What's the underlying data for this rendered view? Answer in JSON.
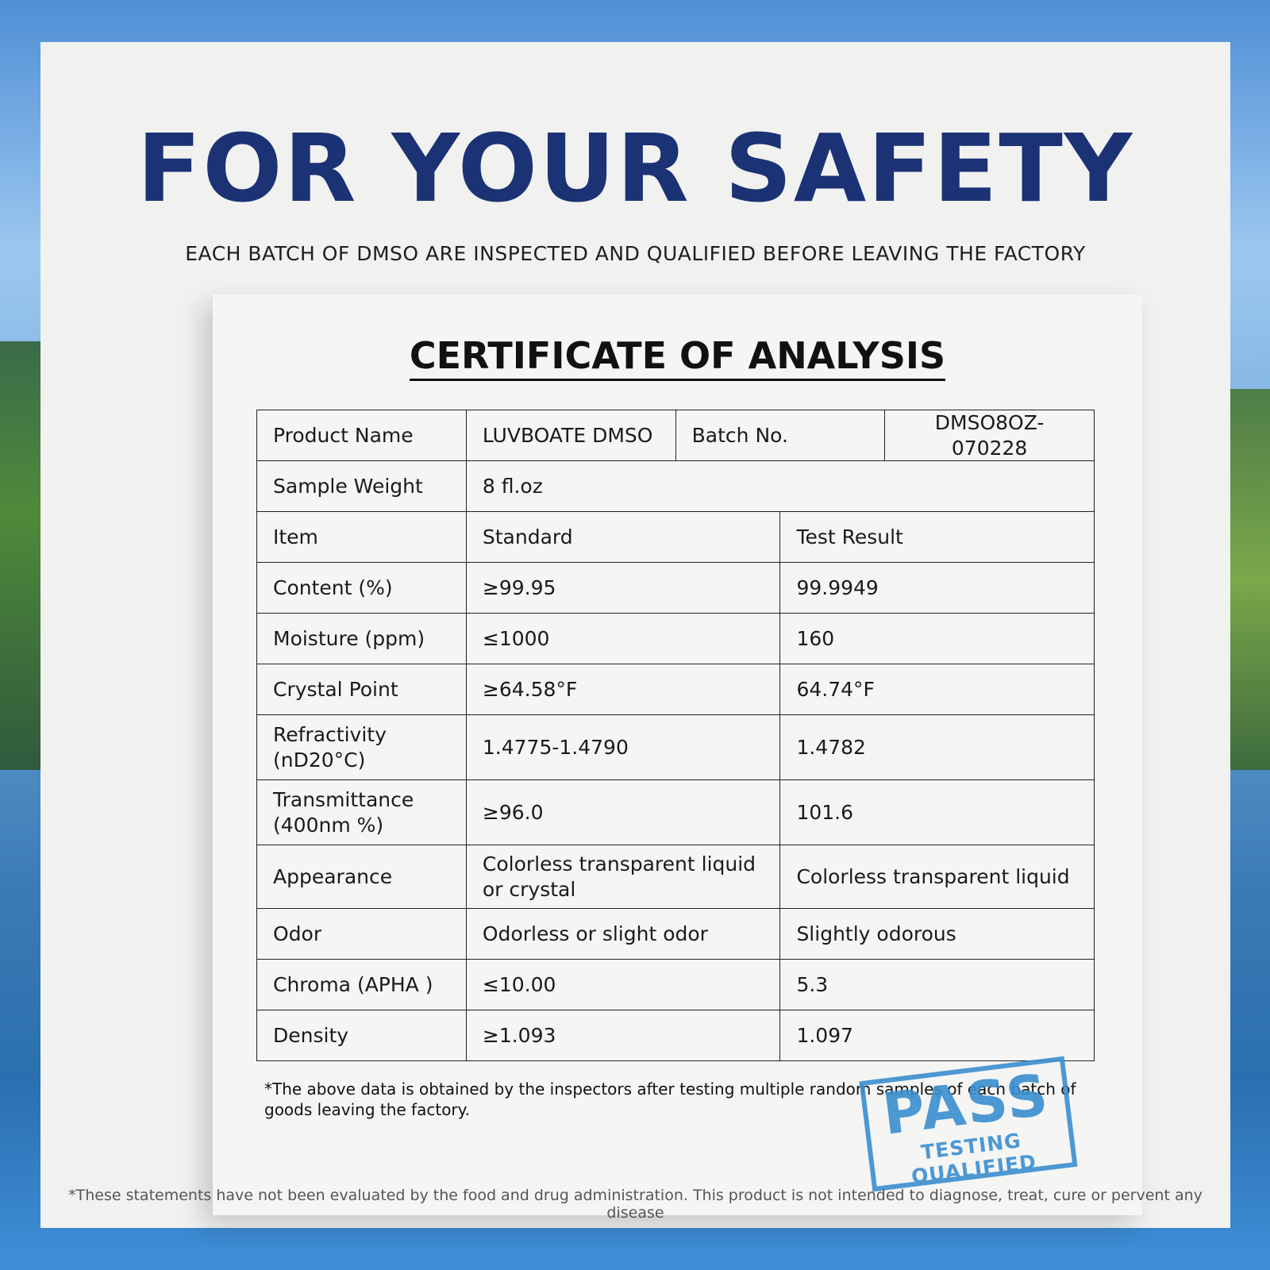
{
  "title": "FOR YOUR SAFETY",
  "subtitle": "EACH BATCH OF DMSO ARE INSPECTED AND QUALIFIED BEFORE LEAVING THE FACTORY",
  "certificate": {
    "heading": "CERTIFICATE OF ANALYSIS",
    "product_name_label": "Product Name",
    "product_name": "LUVBOATE DMSO",
    "batch_label": "Batch No.",
    "batch": "DMSO8OZ-070228",
    "sample_weight_label": "Sample Weight",
    "sample_weight": "8 fl.oz",
    "headers": [
      "Item",
      "Standard",
      "Test Result"
    ],
    "rows": [
      [
        "Content (%)",
        "≥99.95",
        "99.9949"
      ],
      [
        "Moisture (ppm)",
        "≤1000",
        "160"
      ],
      [
        "Crystal Point",
        "≥64.58°F",
        "64.74°F"
      ],
      [
        "Refractivity (nD20°C)",
        "1.4775-1.4790",
        "1.4782"
      ],
      [
        "Transmittance (400nm %)",
        "≥96.0",
        "101.6"
      ],
      [
        "Appearance",
        "Colorless transparent liquid or crystal",
        "Colorless transparent liquid"
      ],
      [
        "Odor",
        "Odorless or slight odor",
        "Slightly odorous"
      ],
      [
        "Chroma (APHA )",
        "≤10.00",
        "5.3"
      ],
      [
        "Density",
        "≥1.093",
        "1.097"
      ]
    ],
    "note": "*The above data is obtained by the inspectors after testing multiple random samples of each batch of goods leaving the factory.",
    "stamp": {
      "main": "PASS",
      "sub": "TESTING QUALIFIED",
      "color": "#3a8fd0"
    }
  },
  "disclaimer": "*These statements have not been evaluated by the food and drug administration. This product is not intended to diagnose, treat, cure or pervent any disease",
  "colors": {
    "title": "#1b3275"
  }
}
